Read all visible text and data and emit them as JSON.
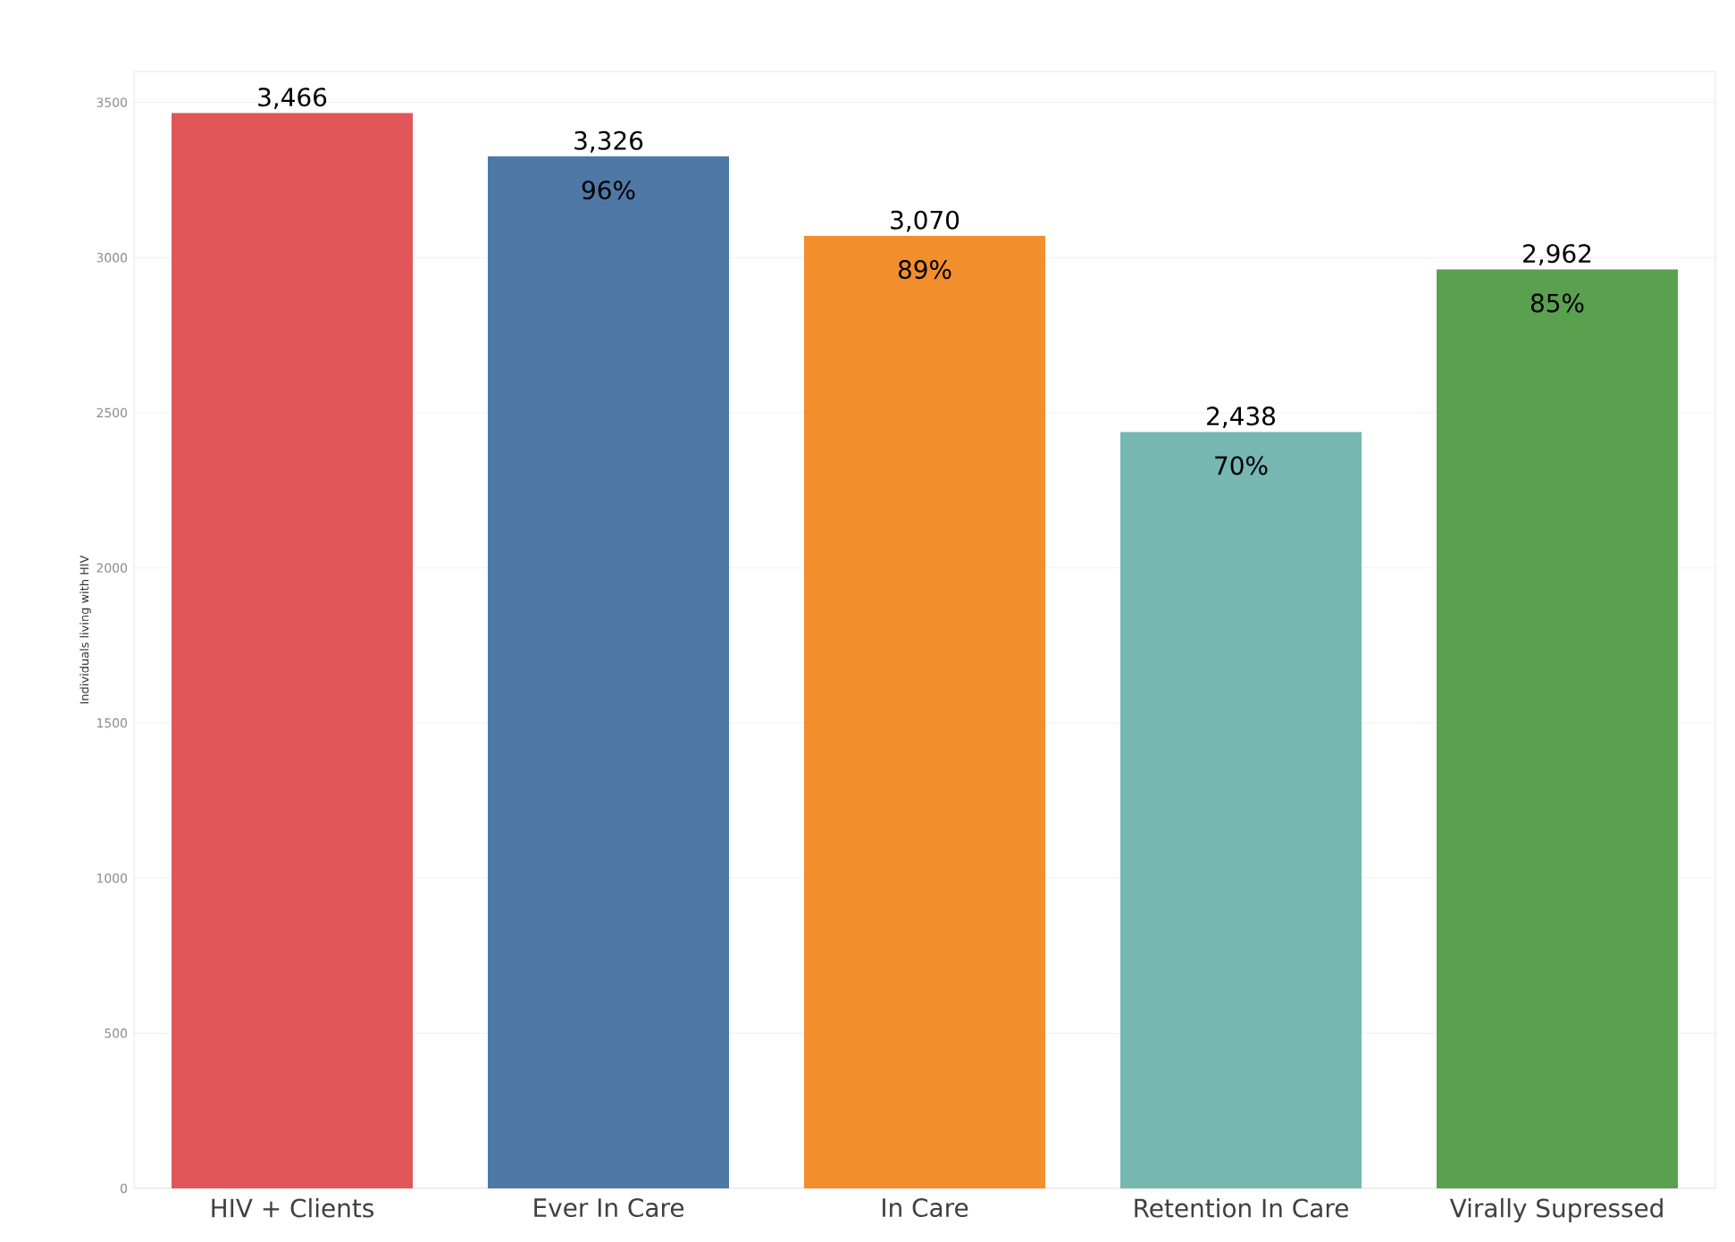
{
  "chart_data": {
    "type": "bar",
    "ylabel": "Individuals living with HIV",
    "categories": [
      "HIV + Clients",
      "Ever In Care",
      "In Care",
      "Retention In Care",
      "Virally Supressed"
    ],
    "values": [
      3466,
      3326,
      3070,
      2438,
      2962
    ],
    "colors": [
      "#e15759",
      "#4e79a7",
      "#f28e2b",
      "#76b7b2",
      "#59a14f"
    ],
    "value_labels": [
      "3,466",
      "3,326",
      "3,070",
      "2,438",
      "2,962"
    ],
    "annotations": [
      {
        "text": "96%",
        "x": "Ever In Care",
        "y": 3326
      },
      {
        "text": "89%",
        "x": "In Care",
        "y": 3070
      },
      {
        "text": "70%",
        "x": "Retention In Care",
        "y": 2438
      },
      {
        "text": "85%",
        "x": "Virally Supressed",
        "y": 2962
      }
    ],
    "ylim": [
      0,
      3600
    ],
    "yticks": [
      0,
      500,
      1000,
      1500,
      2000,
      2500,
      3000,
      3500
    ],
    "grid": "y"
  }
}
